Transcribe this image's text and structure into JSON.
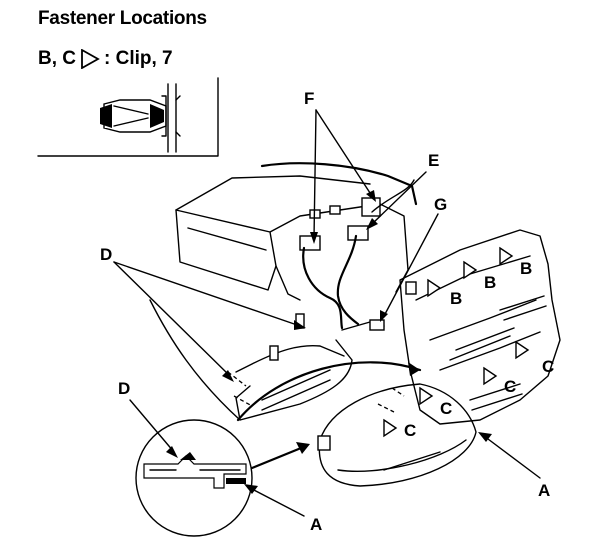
{
  "heading": "Fastener Locations",
  "legend": {
    "prefix": "B, C",
    "suffix": ": Clip, 7",
    "symbol_icon": "triangle-outline-icon"
  },
  "labels": {
    "A": "A",
    "B": "B",
    "C": "C",
    "D": "D",
    "E": "E",
    "F": "F",
    "G": "G"
  }
}
